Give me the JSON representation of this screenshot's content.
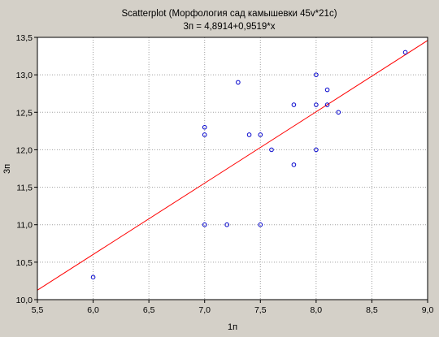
{
  "chart_data": {
    "type": "scatter",
    "title": "Scatterplot (Морфология сад камышевки 45v*21c)",
    "subtitle": "3п = 4,8914+0,9519*x",
    "xlabel": "1п",
    "ylabel": "3п",
    "xlim": [
      5.5,
      9.0
    ],
    "ylim": [
      10.0,
      13.5
    ],
    "x_ticks": [
      "5,5",
      "6,0",
      "6,5",
      "7,0",
      "7,5",
      "8,0",
      "8,5",
      "9,0"
    ],
    "y_ticks": [
      "10,0",
      "10,5",
      "11,0",
      "11,5",
      "12,0",
      "12,5",
      "13,0",
      "13,5"
    ],
    "grid": true,
    "points": [
      {
        "x": 6.0,
        "y": 10.3
      },
      {
        "x": 7.0,
        "y": 11.0
      },
      {
        "x": 7.0,
        "y": 12.2
      },
      {
        "x": 7.0,
        "y": 12.3
      },
      {
        "x": 7.2,
        "y": 11.0
      },
      {
        "x": 7.3,
        "y": 12.9
      },
      {
        "x": 7.4,
        "y": 12.2
      },
      {
        "x": 7.5,
        "y": 11.0
      },
      {
        "x": 7.5,
        "y": 12.2
      },
      {
        "x": 7.6,
        "y": 12.0
      },
      {
        "x": 7.8,
        "y": 11.8
      },
      {
        "x": 7.8,
        "y": 12.6
      },
      {
        "x": 8.0,
        "y": 12.0
      },
      {
        "x": 8.0,
        "y": 12.6
      },
      {
        "x": 8.0,
        "y": 13.0
      },
      {
        "x": 8.1,
        "y": 12.6
      },
      {
        "x": 8.1,
        "y": 12.8
      },
      {
        "x": 8.2,
        "y": 12.5
      },
      {
        "x": 8.8,
        "y": 13.3
      }
    ],
    "regression": {
      "intercept": 4.8914,
      "slope": 0.9519
    },
    "colors": {
      "points": "#0000cc",
      "line": "#ff0000",
      "plot_bg": "#ffffff",
      "page_bg": "#d4d0c8"
    }
  }
}
